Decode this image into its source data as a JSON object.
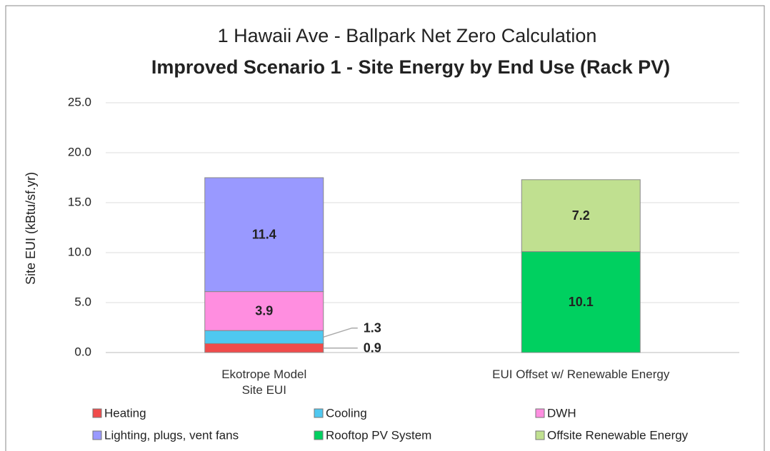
{
  "chart_data": {
    "type": "stacked_bar",
    "title": "1 Hawaii Ave - Ballpark Net Zero Calculation",
    "subtitle": "Improved Scenario 1 - Site Energy by End Use (Rack PV)",
    "y_label": "Site EUI (kBtu/sf.yr)",
    "categories": [
      "Ekotrope Model Site EUI",
      "EUI Offset w/ Renewable Energy"
    ],
    "series": [
      {
        "name": "Heating",
        "color": "#f04b4b",
        "values": [
          0.9,
          null
        ]
      },
      {
        "name": "Cooling",
        "color": "#4fc8f0",
        "values": [
          1.3,
          null
        ]
      },
      {
        "name": "DWH",
        "color": "#ff8ee0",
        "values": [
          3.9,
          null
        ]
      },
      {
        "name": "Lighting, plugs, vent fans",
        "color": "#9999ff",
        "values": [
          11.4,
          null
        ]
      },
      {
        "name": "Rooftop PV System",
        "color": "#00d060",
        "values": [
          null,
          10.1
        ]
      },
      {
        "name": "Offsite Renewable Energy",
        "color": "#c0e090",
        "values": [
          null,
          7.2
        ]
      }
    ],
    "ylim": [
      0,
      25
    ],
    "yticks": [
      {
        "value": 0,
        "label": "0.0"
      },
      {
        "value": 5,
        "label": "5.0"
      },
      {
        "value": 10,
        "label": "10.0"
      },
      {
        "value": 15,
        "label": "15.0"
      },
      {
        "value": 20,
        "label": "20.0"
      },
      {
        "value": 25,
        "label": "25.0"
      }
    ],
    "grid": true,
    "legend": "bottom"
  }
}
